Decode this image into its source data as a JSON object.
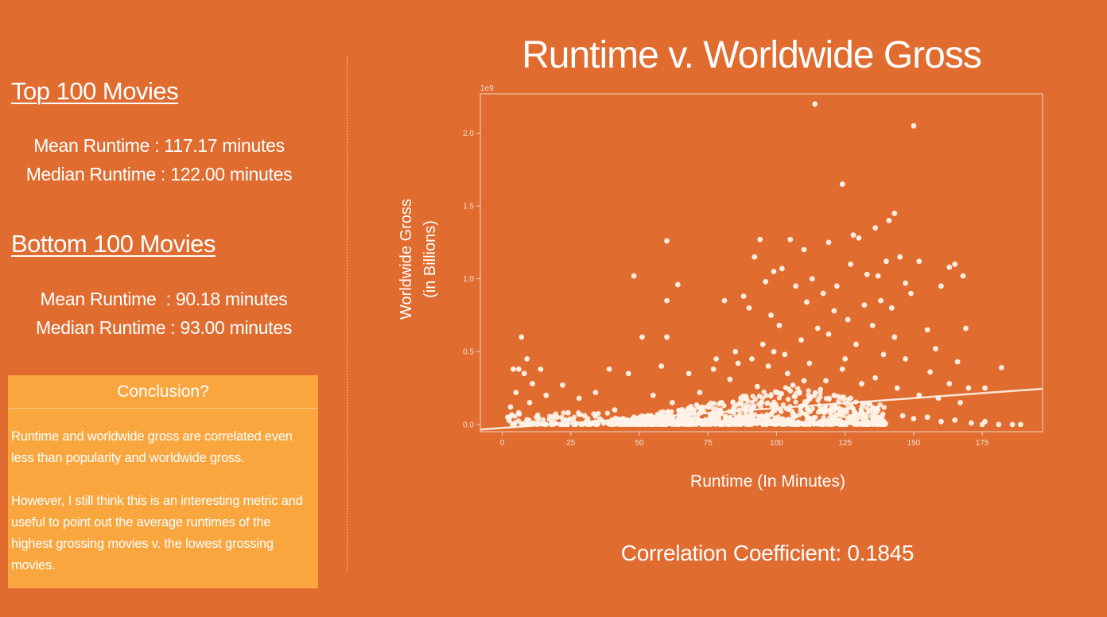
{
  "left_panel": {
    "top": {
      "heading": "Top 100 Movies",
      "mean_line": "Mean Runtime : 117.17 minutes",
      "median_line": "Median Runtime : 122.00 minutes"
    },
    "bottom": {
      "heading": "Bottom 100 Movies",
      "mean_line": "Mean Runtime  : 90.18 minutes",
      "median_line": "Median Runtime : 93.00 minutes"
    },
    "conclusion": {
      "title": "Conclusion?",
      "paragraph_1": "Runtime and worldwide gross are correlated even less than popularity and worldwide gross.",
      "paragraph_2": "However, I still think this is an interesting metric and useful to point out the average runtimes of the highest grossing movies v. the lowest grossing movies."
    }
  },
  "correlation_text": "Correlation Coefficient: 0.1845",
  "colors": {
    "background": "#E06C30",
    "conclusion_box": "#F9A63F",
    "points": "#FFF3E8",
    "text": "#FFFFFF"
  },
  "chart_data": {
    "type": "scatter",
    "title": "Runtime v. Worldwide Gross",
    "xlabel": "Runtime (In Minutes)",
    "ylabel": "Worldwide Gross",
    "ylabel_sub": "(in Billions)",
    "y_offset_label": "1e9",
    "xlim": [
      -8,
      197
    ],
    "ylim": [
      -0.05,
      2.27
    ],
    "xticks": [
      0,
      25,
      50,
      75,
      100,
      125,
      150,
      175
    ],
    "yticks": [
      0.0,
      0.5,
      1.0,
      1.5,
      2.0
    ],
    "ytick_labels": [
      "0.0",
      "0.5",
      "1.0",
      "1.5",
      "2.0"
    ],
    "grid": false,
    "legend": "none",
    "trendline": {
      "x": [
        -8,
        197
      ],
      "y": [
        -0.035,
        0.245
      ]
    },
    "dense_region": {
      "x_range": [
        42,
        140
      ],
      "y_range": [
        0.0,
        0.12
      ]
    },
    "points": [
      [
        114,
        2.2
      ],
      [
        150,
        2.05
      ],
      [
        124,
        1.65
      ],
      [
        143,
        1.45
      ],
      [
        141,
        1.4
      ],
      [
        119,
        1.25
      ],
      [
        136,
        1.35
      ],
      [
        128,
        1.3
      ],
      [
        130,
        1.28
      ],
      [
        94,
        1.27
      ],
      [
        60,
        1.26
      ],
      [
        105,
        1.27
      ],
      [
        110,
        1.2
      ],
      [
        145,
        1.15
      ],
      [
        140,
        1.12
      ],
      [
        137,
        1.02
      ],
      [
        152,
        1.12
      ],
      [
        165,
        1.1
      ],
      [
        92,
        1.15
      ],
      [
        99,
        1.05
      ],
      [
        102,
        1.07
      ],
      [
        113,
        1.0
      ],
      [
        127,
        1.1
      ],
      [
        133,
        1.03
      ],
      [
        48,
        1.02
      ],
      [
        64,
        0.96
      ],
      [
        81,
        0.85
      ],
      [
        60,
        0.85
      ],
      [
        96,
        0.98
      ],
      [
        107,
        0.95
      ],
      [
        117,
        0.9
      ],
      [
        122,
        0.95
      ],
      [
        149,
        0.9
      ],
      [
        160,
        0.95
      ],
      [
        168,
        1.02
      ],
      [
        163,
        1.08
      ],
      [
        147,
        0.97
      ],
      [
        138,
        0.85
      ],
      [
        142,
        0.8
      ],
      [
        132,
        0.82
      ],
      [
        121,
        0.78
      ],
      [
        111,
        0.84
      ],
      [
        98,
        0.75
      ],
      [
        88,
        0.88
      ],
      [
        90,
        0.8
      ],
      [
        101,
        0.68
      ],
      [
        115,
        0.66
      ],
      [
        126,
        0.72
      ],
      [
        135,
        0.68
      ],
      [
        143,
        0.6
      ],
      [
        155,
        0.65
      ],
      [
        169,
        0.66
      ],
      [
        158,
        0.52
      ],
      [
        166,
        0.43
      ],
      [
        176,
        0.25
      ],
      [
        182,
        0.39
      ],
      [
        170,
        0.25
      ],
      [
        163,
        0.28
      ],
      [
        156,
        0.36
      ],
      [
        147,
        0.45
      ],
      [
        139,
        0.48
      ],
      [
        129,
        0.55
      ],
      [
        119,
        0.62
      ],
      [
        109,
        0.58
      ],
      [
        95,
        0.55
      ],
      [
        86,
        0.42
      ],
      [
        77,
        0.38
      ],
      [
        68,
        0.35
      ],
      [
        58,
        0.4
      ],
      [
        51,
        0.6
      ],
      [
        60,
        0.6
      ],
      [
        46,
        0.35
      ],
      [
        39,
        0.38
      ],
      [
        34,
        0.22
      ],
      [
        28,
        0.18
      ],
      [
        22,
        0.27
      ],
      [
        16,
        0.2
      ],
      [
        14,
        0.38
      ],
      [
        9,
        0.45
      ],
      [
        7,
        0.6
      ],
      [
        6,
        0.38
      ],
      [
        4,
        0.38
      ],
      [
        8,
        0.35
      ],
      [
        11,
        0.28
      ],
      [
        5,
        0.22
      ],
      [
        3,
        0.12
      ],
      [
        10,
        0.15
      ],
      [
        20,
        0.05
      ],
      [
        24,
        0.08
      ],
      [
        30,
        0.06
      ],
      [
        36,
        0.03
      ],
      [
        41,
        0.1
      ],
      [
        55,
        0.2
      ],
      [
        62,
        0.15
      ],
      [
        72,
        0.22
      ],
      [
        83,
        0.31
      ],
      [
        91,
        0.45
      ],
      [
        97,
        0.4
      ],
      [
        104,
        0.35
      ],
      [
        112,
        0.42
      ],
      [
        118,
        0.3
      ],
      [
        124,
        0.38
      ],
      [
        131,
        0.28
      ],
      [
        136,
        0.32
      ],
      [
        144,
        0.25
      ],
      [
        152,
        0.2
      ],
      [
        159,
        0.18
      ],
      [
        167,
        0.15
      ],
      [
        175,
        0.0
      ],
      [
        181,
        0.0
      ],
      [
        186,
        0.0
      ],
      [
        189,
        0.0
      ],
      [
        176,
        0.02
      ],
      [
        171,
        0.01
      ],
      [
        165,
        0.03
      ],
      [
        160,
        0.02
      ],
      [
        155,
        0.05
      ],
      [
        150,
        0.04
      ],
      [
        146,
        0.06
      ],
      [
        18,
        0.01
      ],
      [
        13,
        0.02
      ],
      [
        26,
        0.02
      ],
      [
        33,
        0.01
      ],
      [
        2,
        0.05
      ],
      [
        6,
        0.08
      ],
      [
        89,
        0.18
      ],
      [
        93,
        0.26
      ],
      [
        100,
        0.22
      ],
      [
        106,
        0.27
      ],
      [
        110,
        0.3
      ],
      [
        116,
        0.24
      ],
      [
        121,
        0.2
      ],
      [
        127,
        0.18
      ],
      [
        80,
        0.15
      ],
      [
        75,
        0.12
      ],
      [
        70,
        0.1
      ],
      [
        66,
        0.08
      ],
      [
        53,
        0.06
      ],
      [
        48,
        0.05
      ],
      [
        44,
        0.04
      ],
      [
        85,
        0.5
      ],
      [
        78,
        0.45
      ],
      [
        99,
        0.5
      ],
      [
        103,
        0.48
      ],
      [
        125,
        0.45
      ]
    ]
  }
}
